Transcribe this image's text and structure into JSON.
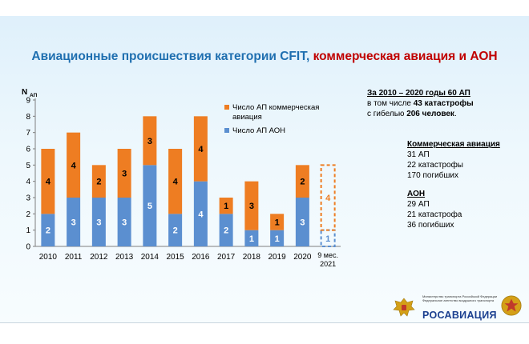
{
  "title": {
    "part1": "Авиационные происшествия категории CFIT,",
    "part2": " коммерческая авиация и АОН"
  },
  "summary": {
    "line1": "За 2010 – 2020 годы 60 АП",
    "line2_prefix": "в том числе ",
    "line2_bold": "43 катастрофы",
    "line3_prefix": "с гибелью ",
    "line3_bold": "206 человек",
    "line3_suffix": "."
  },
  "commercial": {
    "heading": "Коммерческая авиация",
    "items": [
      "31 АП",
      "22 катастрофы",
      "170 погибших"
    ]
  },
  "aon": {
    "heading": "АОН",
    "items": [
      "29 АП",
      "21 катастрофа",
      "36 погибших"
    ]
  },
  "logo": {
    "name": "РОСАВИАЦИЯ",
    "ministry": "Министерство транспорта Российской Федерации Федеральное агентство воздушного транспорта"
  },
  "colors": {
    "commercial": "#ee7d22",
    "aon": "#5b8fd0"
  },
  "chart_data": {
    "type": "bar",
    "stacked": true,
    "ylabel": "N",
    "ylabel_sub": "АП",
    "ylim": [
      0,
      9
    ],
    "yticks": [
      0,
      1,
      2,
      3,
      4,
      5,
      6,
      7,
      8,
      9
    ],
    "grid": false,
    "legend_position": "top-right",
    "categories": [
      "2010",
      "2011",
      "2012",
      "2013",
      "2014",
      "2015",
      "2016",
      "2017",
      "2018",
      "2019",
      "2020",
      "9 мес. 2021"
    ],
    "series": [
      {
        "name": "Число АП АОН",
        "color": "#5b8fd0",
        "values": [
          2,
          3,
          3,
          3,
          5,
          2,
          4,
          2,
          1,
          1,
          3,
          1
        ]
      },
      {
        "name": "Число АП коммерческая авиация",
        "color": "#ee7d22",
        "values": [
          4,
          4,
          2,
          3,
          3,
          4,
          4,
          1,
          3,
          1,
          2,
          4
        ]
      }
    ],
    "dashed_categories": [
      "9 мес. 2021"
    ]
  }
}
